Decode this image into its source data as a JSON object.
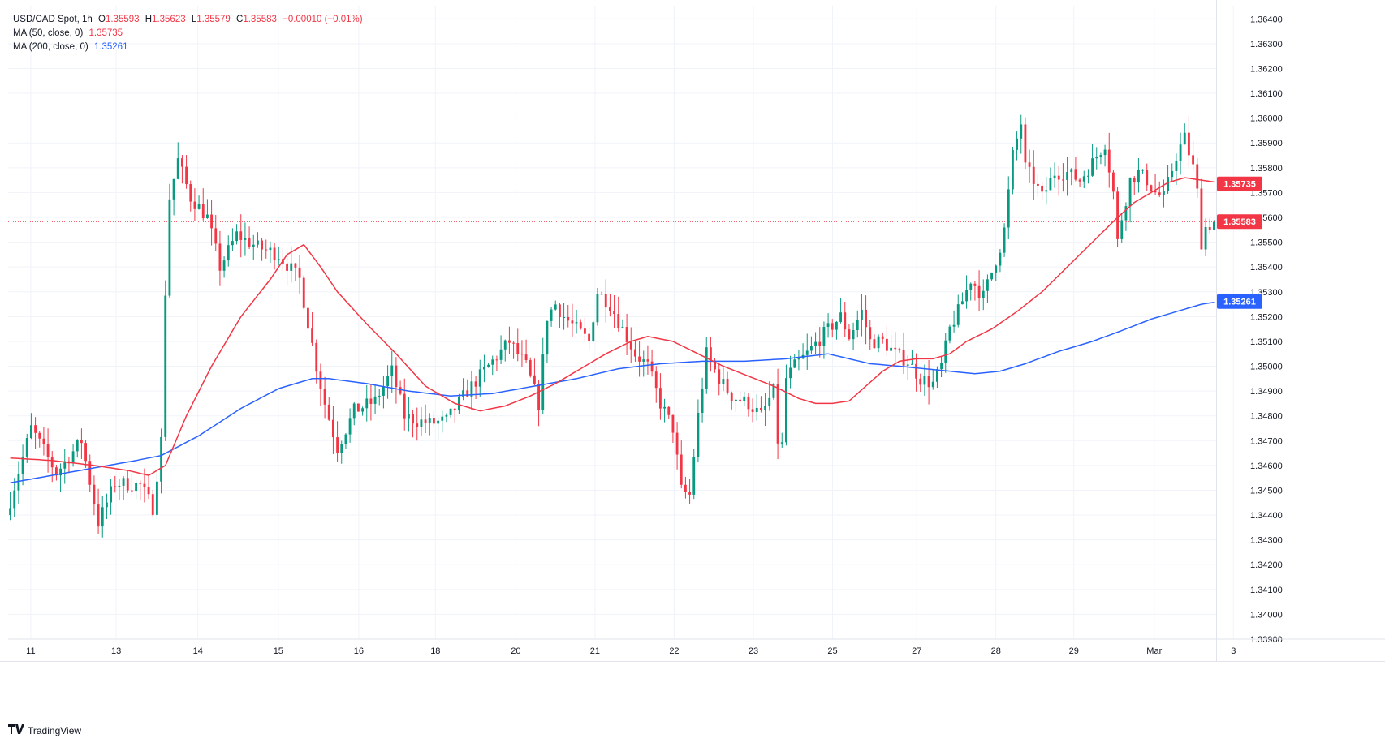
{
  "header": {
    "symbol": "USD/CAD Spot, 1h",
    "ohlc": [
      {
        "k": "O",
        "v": "1.35593"
      },
      {
        "k": "H",
        "v": "1.35623"
      },
      {
        "k": "L",
        "v": "1.35579"
      },
      {
        "k": "C",
        "v": "1.35583"
      }
    ],
    "change": "−0.00010 (−0.01%)",
    "ma50_label": "MA (50, close, 0)",
    "ma50_value": "1.35735",
    "ma200_label": "MA (200, close, 0)",
    "ma200_value": "1.35261"
  },
  "brand": "TradingView",
  "colors": {
    "up": "#089981",
    "down": "#f23645",
    "ma50": "#f23645",
    "ma200": "#2962ff",
    "grid": "#f0f3fa",
    "axis_text": "#131722"
  },
  "chart_data": {
    "type": "candlestick",
    "ylim": [
      1.339,
      1.3645
    ],
    "y_ticks": [
      "1.36400",
      "1.36300",
      "1.36200",
      "1.36100",
      "1.36000",
      "1.35900",
      "1.35800",
      "1.35700",
      "1.35600",
      "1.35500",
      "1.35400",
      "1.35300",
      "1.35200",
      "1.35100",
      "1.35000",
      "1.34900",
      "1.34800",
      "1.34700",
      "1.34600",
      "1.34500",
      "1.34400",
      "1.34300",
      "1.34200",
      "1.34100",
      "1.34000",
      "1.33900"
    ],
    "x_labels": [
      "11",
      "13",
      "14",
      "15",
      "16",
      "18",
      "20",
      "21",
      "22",
      "23",
      "25",
      "27",
      "28",
      "29",
      "Mar",
      "3"
    ],
    "last_price": "1.35583",
    "ma50_last": "1.35735",
    "ma200_last": "1.35261",
    "price_path": [
      [
        0,
        1.344
      ],
      [
        6,
        1.3475
      ],
      [
        12,
        1.3457
      ],
      [
        18,
        1.347
      ],
      [
        22,
        1.3437
      ],
      [
        26,
        1.3453
      ],
      [
        32,
        1.3452
      ],
      [
        35,
        1.3443
      ],
      [
        37,
        1.347
      ],
      [
        38,
        1.353
      ],
      [
        39,
        1.3568
      ],
      [
        41,
        1.3583
      ],
      [
        44,
        1.3568
      ],
      [
        48,
        1.356
      ],
      [
        51,
        1.354
      ],
      [
        55,
        1.3553
      ],
      [
        60,
        1.3548
      ],
      [
        65,
        1.3545
      ],
      [
        70,
        1.3535
      ],
      [
        74,
        1.35
      ],
      [
        76,
        1.3485
      ],
      [
        79,
        1.3467
      ],
      [
        83,
        1.3482
      ],
      [
        88,
        1.3486
      ],
      [
        92,
        1.3498
      ],
      [
        95,
        1.348
      ],
      [
        98,
        1.3478
      ],
      [
        101,
        1.3477
      ],
      [
        105,
        1.3478
      ],
      [
        110,
        1.349
      ],
      [
        115,
        1.35
      ],
      [
        120,
        1.351
      ],
      [
        124,
        1.35
      ],
      [
        127,
        1.3485
      ],
      [
        129,
        1.352
      ],
      [
        131,
        1.3525
      ],
      [
        133,
        1.352
      ],
      [
        136,
        1.3515
      ],
      [
        139,
        1.351
      ],
      [
        141,
        1.353
      ],
      [
        144,
        1.3525
      ],
      [
        147,
        1.3515
      ],
      [
        150,
        1.3505
      ],
      [
        153,
        1.35
      ],
      [
        156,
        1.3485
      ],
      [
        159,
        1.3475
      ],
      [
        161,
        1.345
      ],
      [
        163,
        1.3448
      ],
      [
        165,
        1.348
      ],
      [
        167,
        1.3505
      ],
      [
        170,
        1.3495
      ],
      [
        173,
        1.3488
      ],
      [
        177,
        1.3485
      ],
      [
        180,
        1.348
      ],
      [
        183,
        1.349
      ],
      [
        184,
        1.347
      ],
      [
        185,
        1.3468
      ],
      [
        186,
        1.3495
      ],
      [
        188,
        1.35
      ],
      [
        191,
        1.3505
      ],
      [
        195,
        1.3513
      ],
      [
        199,
        1.352
      ],
      [
        201,
        1.3512
      ],
      [
        204,
        1.3522
      ],
      [
        206,
        1.351
      ],
      [
        209,
        1.351
      ],
      [
        212,
        1.3505
      ],
      [
        215,
        1.3502
      ],
      [
        218,
        1.3495
      ],
      [
        221,
        1.3493
      ],
      [
        223,
        1.35
      ],
      [
        225,
        1.3515
      ],
      [
        227,
        1.3522
      ],
      [
        230,
        1.3535
      ],
      [
        233,
        1.3528
      ],
      [
        235,
        1.3538
      ],
      [
        237,
        1.3548
      ],
      [
        238,
        1.3555
      ],
      [
        240,
        1.3585
      ],
      [
        242,
        1.3598
      ],
      [
        243,
        1.358
      ],
      [
        245,
        1.3575
      ],
      [
        247,
        1.3568
      ],
      [
        250,
        1.3578
      ],
      [
        253,
        1.3578
      ],
      [
        256,
        1.3575
      ],
      [
        259,
        1.3582
      ],
      [
        262,
        1.359
      ],
      [
        264,
        1.357
      ],
      [
        265,
        1.355
      ],
      [
        266,
        1.356
      ],
      [
        268,
        1.3575
      ],
      [
        270,
        1.3578
      ],
      [
        272,
        1.3575
      ],
      [
        274,
        1.357
      ],
      [
        276,
        1.3568
      ],
      [
        279,
        1.3585
      ],
      [
        281,
        1.3592
      ],
      [
        283,
        1.358
      ],
      [
        284,
        1.357
      ],
      [
        285,
        1.355
      ],
      [
        286,
        1.3556
      ],
      [
        288,
        1.3558
      ]
    ],
    "ma50_path": [
      [
        0,
        1.3463
      ],
      [
        10,
        1.3462
      ],
      [
        20,
        1.346
      ],
      [
        28,
        1.3458
      ],
      [
        33,
        1.3456
      ],
      [
        37,
        1.346
      ],
      [
        42,
        1.348
      ],
      [
        48,
        1.35
      ],
      [
        55,
        1.352
      ],
      [
        62,
        1.3535
      ],
      [
        66,
        1.3545
      ],
      [
        70,
        1.3549
      ],
      [
        74,
        1.354
      ],
      [
        78,
        1.353
      ],
      [
        85,
        1.3517
      ],
      [
        92,
        1.3505
      ],
      [
        99,
        1.3492
      ],
      [
        106,
        1.3485
      ],
      [
        112,
        1.3482
      ],
      [
        118,
        1.3484
      ],
      [
        124,
        1.3488
      ],
      [
        130,
        1.3493
      ],
      [
        136,
        1.3499
      ],
      [
        142,
        1.3505
      ],
      [
        148,
        1.351
      ],
      [
        152,
        1.3512
      ],
      [
        158,
        1.351
      ],
      [
        164,
        1.3505
      ],
      [
        170,
        1.35
      ],
      [
        176,
        1.3496
      ],
      [
        182,
        1.3492
      ],
      [
        188,
        1.3487
      ],
      [
        192,
        1.3485
      ],
      [
        196,
        1.3485
      ],
      [
        200,
        1.3486
      ],
      [
        204,
        1.3492
      ],
      [
        208,
        1.3498
      ],
      [
        212,
        1.3502
      ],
      [
        216,
        1.3503
      ],
      [
        220,
        1.3503
      ],
      [
        224,
        1.3505
      ],
      [
        228,
        1.351
      ],
      [
        234,
        1.3515
      ],
      [
        240,
        1.3522
      ],
      [
        246,
        1.353
      ],
      [
        252,
        1.354
      ],
      [
        258,
        1.355
      ],
      [
        264,
        1.356
      ],
      [
        268,
        1.3566
      ],
      [
        272,
        1.357
      ],
      [
        276,
        1.3574
      ],
      [
        280,
        1.3576
      ],
      [
        284,
        1.3575
      ],
      [
        288,
        1.3574
      ]
    ],
    "ma200_path": [
      [
        0,
        1.3453
      ],
      [
        10,
        1.3456
      ],
      [
        20,
        1.3459
      ],
      [
        30,
        1.3462
      ],
      [
        36,
        1.3464
      ],
      [
        45,
        1.3472
      ],
      [
        55,
        1.3483
      ],
      [
        64,
        1.3491
      ],
      [
        72,
        1.3495
      ],
      [
        76,
        1.3495
      ],
      [
        85,
        1.3493
      ],
      [
        95,
        1.349
      ],
      [
        105,
        1.3488
      ],
      [
        115,
        1.3489
      ],
      [
        125,
        1.3492
      ],
      [
        135,
        1.3495
      ],
      [
        145,
        1.3499
      ],
      [
        155,
        1.3501
      ],
      [
        165,
        1.3502
      ],
      [
        175,
        1.3502
      ],
      [
        185,
        1.3503
      ],
      [
        195,
        1.3505
      ],
      [
        200,
        1.3503
      ],
      [
        205,
        1.3501
      ],
      [
        212,
        1.35
      ],
      [
        218,
        1.3499
      ],
      [
        224,
        1.3498
      ],
      [
        230,
        1.3497
      ],
      [
        236,
        1.3498
      ],
      [
        242,
        1.3501
      ],
      [
        250,
        1.3506
      ],
      [
        258,
        1.351
      ],
      [
        266,
        1.3515
      ],
      [
        272,
        1.3519
      ],
      [
        278,
        1.3522
      ],
      [
        284,
        1.3525
      ],
      [
        288,
        1.3526
      ]
    ]
  }
}
